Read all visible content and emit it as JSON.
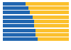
{
  "chart_data": {
    "type": "bar",
    "orientation": "horizontal",
    "stacked": true,
    "categories": [
      null,
      null,
      null,
      null,
      null,
      null,
      null,
      null,
      null
    ],
    "series": [
      {
        "color": "#2166b0",
        "values": [
          34,
          39,
          41,
          45,
          47,
          47,
          49,
          49,
          53
        ]
      },
      {
        "color": "#fbc02d",
        "values": [
          66,
          61,
          59,
          55,
          53,
          53,
          51,
          51,
          47
        ]
      }
    ],
    "xlim": [
      0,
      100
    ],
    "grid": false,
    "tick_labels": false
  }
}
